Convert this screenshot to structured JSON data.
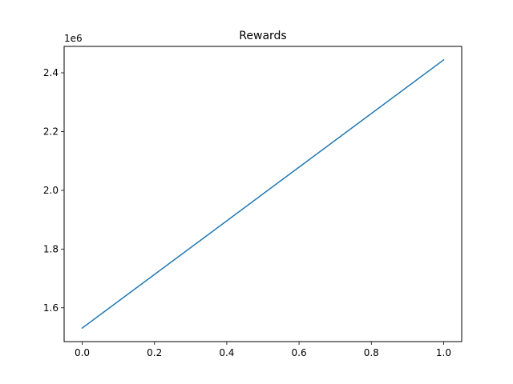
{
  "chart_data": {
    "type": "line",
    "title": "Rewards",
    "xlabel": "",
    "ylabel": "",
    "y_offset_label": "1e6",
    "xlim": [
      -0.05,
      1.05
    ],
    "ylim": [
      1.485,
      2.49
    ],
    "x_ticks": [
      0.0,
      0.2,
      0.4,
      0.6,
      0.8,
      1.0
    ],
    "x_tick_labels": [
      "0.0",
      "0.2",
      "0.4",
      "0.6",
      "0.8",
      "1.0"
    ],
    "y_ticks": [
      1.6,
      1.8,
      2.0,
      2.2,
      2.4
    ],
    "y_tick_labels": [
      "1.6",
      "1.8",
      "2.0",
      "2.2",
      "2.4"
    ],
    "grid": false,
    "series": [
      {
        "x": [
          0.0,
          1.0
        ],
        "values": [
          1.531,
          2.444
        ],
        "color": "#1f77b4"
      }
    ]
  }
}
